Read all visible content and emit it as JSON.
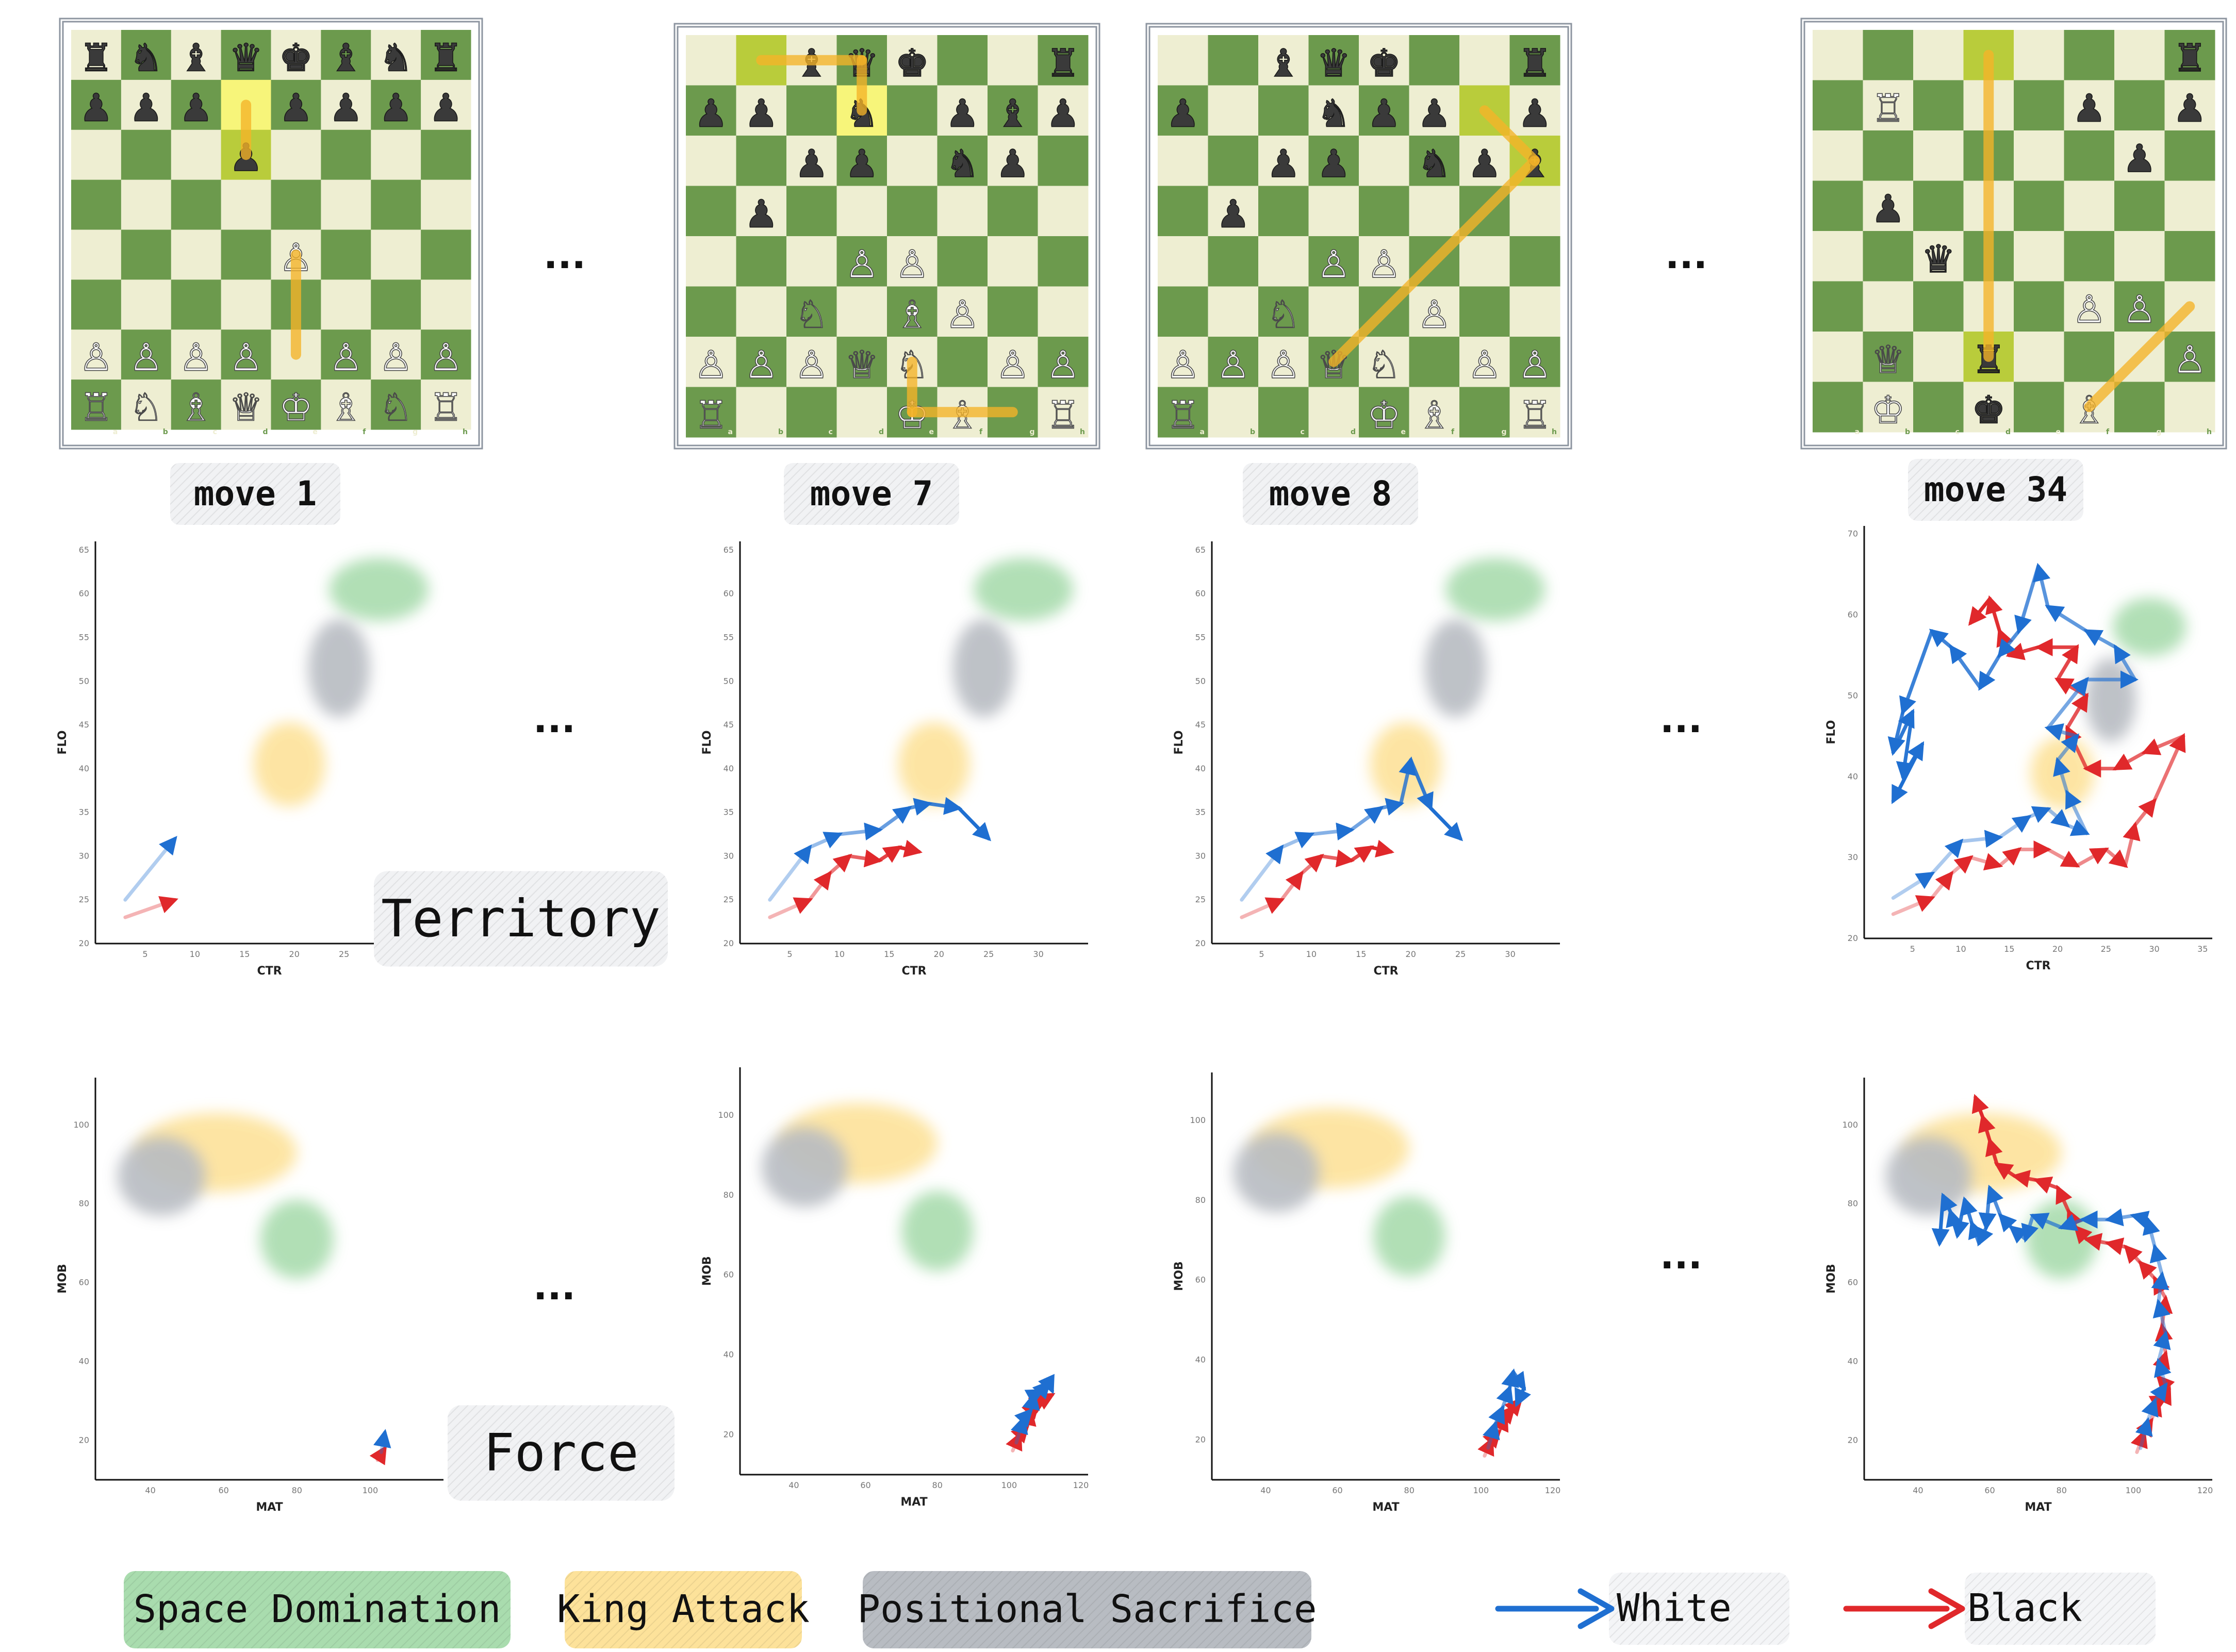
{
  "ellipsis": "...",
  "boards": [
    {
      "label": "move 1",
      "highlights": [
        "d7",
        "d6"
      ],
      "pieces": {
        "a8": "♜",
        "b8": "♞",
        "c8": "♝",
        "d8": "♛",
        "e8": "♚",
        "f8": "♝",
        "g8": "♞",
        "h8": "♜",
        "a7": "♟",
        "b7": "♟",
        "c7": "♟",
        "e7": "♟",
        "f7": "♟",
        "g7": "♟",
        "h7": "♟",
        "d6": "♟",
        "e4": "♙",
        "a2": "♙",
        "b2": "♙",
        "c2": "♙",
        "d2": "♙",
        "f2": "♙",
        "g2": "♙",
        "h2": "♙",
        "a1": "♖",
        "b1": "♘",
        "c1": "♗",
        "d1": "♕",
        "e1": "♔",
        "f1": "♗",
        "g1": "♘",
        "h1": "♖"
      },
      "arrows": [
        [
          "e2",
          "e4"
        ],
        [
          "d7",
          "d6"
        ]
      ]
    },
    {
      "label": "move 7",
      "highlights": [
        "b8",
        "d7"
      ],
      "pieces": {
        "c8": "♝",
        "d8": "♛",
        "e8": "♚",
        "h8": "♜",
        "a7": "♟",
        "b7": "♟",
        "d7": "♞",
        "f7": "♟",
        "g7": "♝",
        "h7": "♟",
        "c6": "♟",
        "d6": "♟",
        "f6": "♞",
        "g6": "♟",
        "b5": "♟",
        "d4": "♙",
        "e4": "♙",
        "c3": "♘",
        "e3": "♗",
        "f3": "♙",
        "a2": "♙",
        "b2": "♙",
        "c2": "♙",
        "d2": "♕",
        "e2": "♘",
        "g2": "♙",
        "h2": "♙",
        "a1": "♖",
        "e1": "♔",
        "f1": "♗",
        "h1": "♖"
      },
      "arrows": [
        [
          "b8",
          "d8"
        ],
        [
          "d8",
          "d7"
        ],
        [
          "g1",
          "e1"
        ],
        [
          "e1",
          "e2"
        ]
      ]
    },
    {
      "label": "move 8",
      "highlights": [
        "g7",
        "h6"
      ],
      "pieces": {
        "c8": "♝",
        "d8": "♛",
        "e8": "♚",
        "h8": "♜",
        "a7": "♟",
        "d7": "♞",
        "e7": "♟",
        "f7": "♟",
        "h7": "♟",
        "c6": "♟",
        "d6": "♟",
        "f6": "♞",
        "g6": "♟",
        "h6": "♝",
        "b5": "♟",
        "d4": "♙",
        "e4": "♙",
        "c3": "♘",
        "f3": "♙",
        "a2": "♙",
        "b2": "♙",
        "c2": "♙",
        "d2": "♕",
        "e2": "♘",
        "g2": "♙",
        "h2": "♙",
        "a1": "♖",
        "e1": "♔",
        "f1": "♗",
        "h1": "♖"
      },
      "arrows": [
        [
          "d2",
          "h6"
        ],
        [
          "g7",
          "h6"
        ]
      ]
    },
    {
      "label": "move 34",
      "highlights": [
        "d8",
        "d2"
      ],
      "pieces": {
        "h8": "♜",
        "b7": "♖",
        "f7": "♟",
        "h7": "♟",
        "g6": "♟",
        "b5": "♟",
        "c4": "♛",
        "f3": "♙",
        "g3": "♙",
        "b2": "♕",
        "d2": "♜",
        "h2": "♙",
        "b1": "♔",
        "d1": "♚",
        "f1": "♗"
      },
      "arrows": [
        [
          "d8",
          "d2"
        ],
        [
          "h3",
          "f1"
        ]
      ]
    }
  ],
  "territory_plots": [
    {
      "xlabel": "CTR",
      "ylabel": "FLO",
      "xlim": [
        0,
        35
      ],
      "ylim": [
        20,
        66
      ],
      "xticks": [
        5,
        10,
        15,
        20,
        25,
        30
      ],
      "yticks": [
        20,
        25,
        30,
        35,
        40,
        45,
        50,
        55,
        60,
        65
      ],
      "white": [
        [
          3,
          25
        ],
        [
          8,
          32
        ]
      ],
      "black": [
        [
          3,
          23
        ],
        [
          8,
          25
        ]
      ]
    },
    {
      "xlabel": "CTR",
      "ylabel": "FLO",
      "xlim": [
        0,
        35
      ],
      "ylim": [
        20,
        66
      ],
      "xticks": [
        5,
        10,
        15,
        20,
        25,
        30
      ],
      "yticks": [
        20,
        25,
        30,
        35,
        40,
        45,
        50,
        55,
        60,
        65
      ],
      "white": [
        [
          3,
          25
        ],
        [
          7,
          31
        ],
        [
          10,
          32.5
        ],
        [
          14,
          33
        ],
        [
          17,
          35.5
        ],
        [
          19,
          36
        ],
        [
          22,
          35.5
        ],
        [
          25,
          32
        ]
      ],
      "black": [
        [
          3,
          23
        ],
        [
          7,
          25
        ],
        [
          9,
          28
        ],
        [
          11,
          30
        ],
        [
          14,
          29.5
        ],
        [
          16,
          31
        ],
        [
          18,
          30.5
        ]
      ]
    },
    {
      "xlabel": "CTR",
      "ylabel": "FLO",
      "xlim": [
        0,
        35
      ],
      "ylim": [
        20,
        66
      ],
      "xticks": [
        5,
        10,
        15,
        20,
        25,
        30
      ],
      "yticks": [
        20,
        25,
        30,
        35,
        40,
        45,
        50,
        55,
        60,
        65
      ],
      "white": [
        [
          3,
          25
        ],
        [
          7,
          31
        ],
        [
          10,
          32.5
        ],
        [
          14,
          33
        ],
        [
          17,
          35.5
        ],
        [
          19,
          36
        ],
        [
          20,
          41
        ],
        [
          22,
          35.5
        ],
        [
          25,
          32
        ]
      ],
      "black": [
        [
          3,
          23
        ],
        [
          7,
          25
        ],
        [
          9,
          28
        ],
        [
          11,
          30
        ],
        [
          14,
          29.5
        ],
        [
          16,
          31
        ],
        [
          18,
          30.5
        ]
      ]
    },
    {
      "xlabel": "CTR",
      "ylabel": "FLO",
      "xlim": [
        0,
        36
      ],
      "ylim": [
        20,
        71
      ],
      "xticks": [
        5,
        10,
        15,
        20,
        25,
        30,
        35
      ],
      "yticks": [
        20,
        30,
        40,
        50,
        60,
        70
      ],
      "white": [
        [
          3,
          25
        ],
        [
          7,
          28
        ],
        [
          10,
          32
        ],
        [
          14,
          32.5
        ],
        [
          17,
          35
        ],
        [
          19,
          36
        ],
        [
          21,
          34
        ],
        [
          23,
          33
        ],
        [
          21,
          38
        ],
        [
          20,
          42
        ],
        [
          22,
          45
        ],
        [
          19,
          46
        ],
        [
          23,
          52
        ],
        [
          28,
          52
        ],
        [
          26,
          56
        ],
        [
          23,
          58
        ],
        [
          19,
          61
        ],
        [
          18,
          66
        ],
        [
          16,
          58
        ],
        [
          14,
          55
        ],
        [
          12,
          51
        ],
        [
          9,
          56
        ],
        [
          7,
          58
        ],
        [
          4,
          48
        ],
        [
          3,
          43
        ],
        [
          5,
          48
        ],
        [
          4,
          40
        ],
        [
          6,
          44
        ],
        [
          3,
          37
        ]
      ],
      "black": [
        [
          3,
          23
        ],
        [
          7,
          25
        ],
        [
          9,
          28
        ],
        [
          11,
          30
        ],
        [
          14,
          29
        ],
        [
          16,
          31
        ],
        [
          19,
          31
        ],
        [
          22,
          29
        ],
        [
          25,
          31
        ],
        [
          27,
          29
        ],
        [
          28,
          34
        ],
        [
          30,
          37
        ],
        [
          33,
          45
        ],
        [
          29,
          43
        ],
        [
          26,
          41
        ],
        [
          23,
          41
        ],
        [
          21,
          46
        ],
        [
          23,
          50
        ],
        [
          20,
          52
        ],
        [
          22,
          56
        ],
        [
          18,
          56
        ],
        [
          15,
          55
        ],
        [
          14,
          58
        ],
        [
          13,
          62
        ],
        [
          11,
          59
        ]
      ]
    }
  ],
  "force_plots": [
    {
      "xlabel": "MAT",
      "ylabel": "MOB",
      "xlim": [
        25,
        120
      ],
      "ylim": [
        10,
        112
      ],
      "xticks": [
        40,
        60,
        80,
        100
      ],
      "yticks": [
        20,
        40,
        60,
        80,
        100
      ],
      "white": [
        [
          103,
          17
        ],
        [
          104,
          22
        ]
      ],
      "black": [
        [
          102,
          15
        ],
        [
          104,
          18
        ]
      ]
    },
    {
      "xlabel": "MAT",
      "ylabel": "MOB",
      "xlim": [
        25,
        122
      ],
      "ylim": [
        10,
        112
      ],
      "xticks": [
        40,
        60,
        80,
        100,
        120
      ],
      "yticks": [
        20,
        40,
        60,
        80,
        100
      ],
      "white": [
        [
          102,
          18
        ],
        [
          104,
          24
        ],
        [
          106,
          26
        ],
        [
          107,
          30
        ],
        [
          109,
          31
        ],
        [
          111,
          33
        ],
        [
          112,
          31
        ]
      ],
      "black": [
        [
          101,
          16
        ],
        [
          103,
          20
        ],
        [
          105,
          22
        ],
        [
          106,
          26
        ],
        [
          108,
          28
        ],
        [
          110,
          29
        ],
        [
          112,
          30
        ]
      ]
    },
    {
      "xlabel": "MAT",
      "ylabel": "MOB",
      "xlim": [
        25,
        122
      ],
      "ylim": [
        10,
        112
      ],
      "xticks": [
        40,
        60,
        80,
        100,
        120
      ],
      "yticks": [
        20,
        40,
        60,
        80,
        100
      ],
      "white": [
        [
          102,
          18
        ],
        [
          104,
          24
        ],
        [
          106,
          28
        ],
        [
          108,
          33
        ],
        [
          109,
          37
        ],
        [
          112,
          33
        ],
        [
          110,
          29
        ]
      ],
      "black": [
        [
          101,
          16
        ],
        [
          103,
          20
        ],
        [
          105,
          22
        ],
        [
          107,
          26
        ],
        [
          109,
          28
        ],
        [
          111,
          30
        ]
      ]
    },
    {
      "xlabel": "MAT",
      "ylabel": "MOB",
      "xlim": [
        25,
        122
      ],
      "ylim": [
        10,
        112
      ],
      "xticks": [
        40,
        60,
        80,
        100,
        120
      ],
      "yticks": [
        20,
        40,
        60,
        80,
        100
      ],
      "white": [
        [
          102,
          18
        ],
        [
          104,
          25
        ],
        [
          106,
          30
        ],
        [
          109,
          34
        ],
        [
          107,
          40
        ],
        [
          109,
          47
        ],
        [
          107,
          55
        ],
        [
          108,
          62
        ],
        [
          106,
          69
        ],
        [
          104,
          76
        ],
        [
          100,
          77
        ],
        [
          93,
          76
        ],
        [
          86,
          76
        ],
        [
          80,
          74
        ],
        [
          72,
          77
        ],
        [
          70,
          71
        ],
        [
          66,
          74
        ],
        [
          63,
          77
        ],
        [
          60,
          84
        ],
        [
          59,
          74
        ],
        [
          57,
          70
        ],
        [
          55,
          75
        ],
        [
          53,
          81
        ],
        [
          51,
          72
        ],
        [
          49,
          78
        ],
        [
          47,
          82
        ],
        [
          46,
          70
        ]
      ],
      "black": [
        [
          101,
          17
        ],
        [
          103,
          22
        ],
        [
          105,
          25
        ],
        [
          107,
          30
        ],
        [
          109,
          31
        ],
        [
          110,
          33
        ],
        [
          107,
          36
        ],
        [
          109,
          42
        ],
        [
          108,
          49
        ],
        [
          109,
          56
        ],
        [
          106,
          61
        ],
        [
          102,
          65
        ],
        [
          98,
          69
        ],
        [
          93,
          70
        ],
        [
          87,
          71
        ],
        [
          84,
          74
        ],
        [
          82,
          78
        ],
        [
          79,
          84
        ],
        [
          73,
          86
        ],
        [
          67,
          87
        ],
        [
          62,
          90
        ],
        [
          60,
          96
        ],
        [
          58,
          102
        ],
        [
          56,
          107
        ]
      ]
    }
  ],
  "region_labels": {
    "territory": "Territory",
    "force": "Force"
  },
  "legend": {
    "space": "Space Domination",
    "king": "King Attack",
    "sacrifice": "Positional Sacrifice",
    "white": "White",
    "black": "Black",
    "colors": {
      "space": "#a9dcae",
      "king": "#fde29a",
      "sacrifice": "#b8bcc2",
      "white": "#1f6fd1",
      "black": "#e0282b"
    }
  }
}
